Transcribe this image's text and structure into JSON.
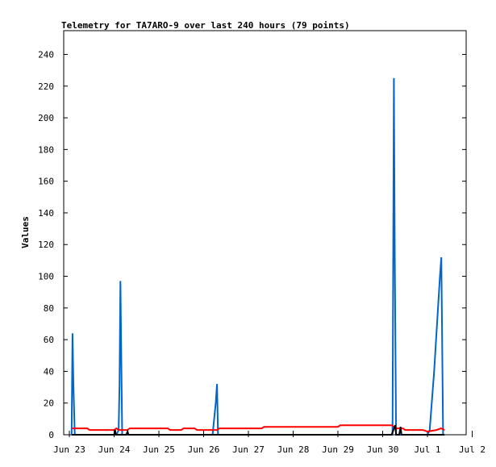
{
  "chart_data": {
    "type": "line",
    "title": "Telemetry for TA7ARO-9 over last 240 hours (79 points)",
    "ylabel": "Values",
    "xlabel": "",
    "ylim": [
      0,
      255
    ],
    "xlim": [
      0,
      9.5
    ],
    "x_tick_labels": [
      "Jun 23",
      "Jun 24",
      "Jun 25",
      "Jun 26",
      "Jun 27",
      "Jun 28",
      "Jun 29",
      "Jun 30",
      "Jul 1",
      "Jul 2"
    ],
    "x_tick_values": [
      0,
      1,
      2,
      3,
      4,
      5,
      6,
      7,
      8,
      9
    ],
    "y_ticks": [
      0,
      20,
      40,
      60,
      80,
      100,
      120,
      140,
      160,
      180,
      200,
      220,
      240
    ],
    "grid": false,
    "series": [
      {
        "color": "#0066cc",
        "points": [
          [
            0.05,
            0
          ],
          [
            0.07,
            64
          ],
          [
            0.09,
            32
          ],
          [
            0.12,
            0
          ],
          [
            1.05,
            0
          ],
          [
            1.1,
            3
          ],
          [
            1.12,
            32
          ],
          [
            1.14,
            97
          ],
          [
            1.16,
            48
          ],
          [
            1.18,
            0
          ],
          [
            3.2,
            0
          ],
          [
            3.27,
            20
          ],
          [
            3.3,
            32
          ],
          [
            3.32,
            0
          ],
          [
            7.22,
            0
          ],
          [
            7.25,
            225
          ],
          [
            7.27,
            112
          ],
          [
            7.3,
            0
          ],
          [
            8.0,
            0
          ],
          [
            8.05,
            3
          ],
          [
            8.15,
            40
          ],
          [
            8.28,
            100
          ],
          [
            8.31,
            112
          ],
          [
            8.33,
            56
          ],
          [
            8.35,
            0
          ]
        ]
      },
      {
        "color": "#ff0000",
        "points": [
          [
            0.05,
            4
          ],
          [
            0.4,
            4
          ],
          [
            0.45,
            3
          ],
          [
            1.0,
            3
          ],
          [
            1.05,
            4
          ],
          [
            1.1,
            3
          ],
          [
            1.3,
            3
          ],
          [
            1.35,
            4
          ],
          [
            2.2,
            4
          ],
          [
            2.25,
            3
          ],
          [
            2.5,
            3
          ],
          [
            2.55,
            4
          ],
          [
            2.8,
            4
          ],
          [
            2.85,
            3
          ],
          [
            3.3,
            3
          ],
          [
            3.35,
            4
          ],
          [
            4.3,
            4
          ],
          [
            4.35,
            5
          ],
          [
            6.0,
            5
          ],
          [
            6.05,
            6
          ],
          [
            7.2,
            6
          ],
          [
            7.3,
            4
          ],
          [
            7.45,
            4
          ],
          [
            7.5,
            3
          ],
          [
            7.9,
            3
          ],
          [
            8.0,
            2
          ],
          [
            8.2,
            3
          ],
          [
            8.3,
            4
          ],
          [
            8.38,
            3
          ]
        ]
      },
      {
        "color": "#000000",
        "points": [
          [
            0.05,
            0
          ],
          [
            1.0,
            0
          ],
          [
            1.02,
            3
          ],
          [
            1.04,
            0
          ],
          [
            1.27,
            0
          ],
          [
            1.3,
            2
          ],
          [
            1.32,
            0
          ],
          [
            7.2,
            0
          ],
          [
            7.28,
            6
          ],
          [
            7.3,
            0
          ],
          [
            7.37,
            0
          ],
          [
            7.4,
            5
          ],
          [
            7.42,
            0
          ],
          [
            8.38,
            0
          ]
        ]
      }
    ]
  }
}
